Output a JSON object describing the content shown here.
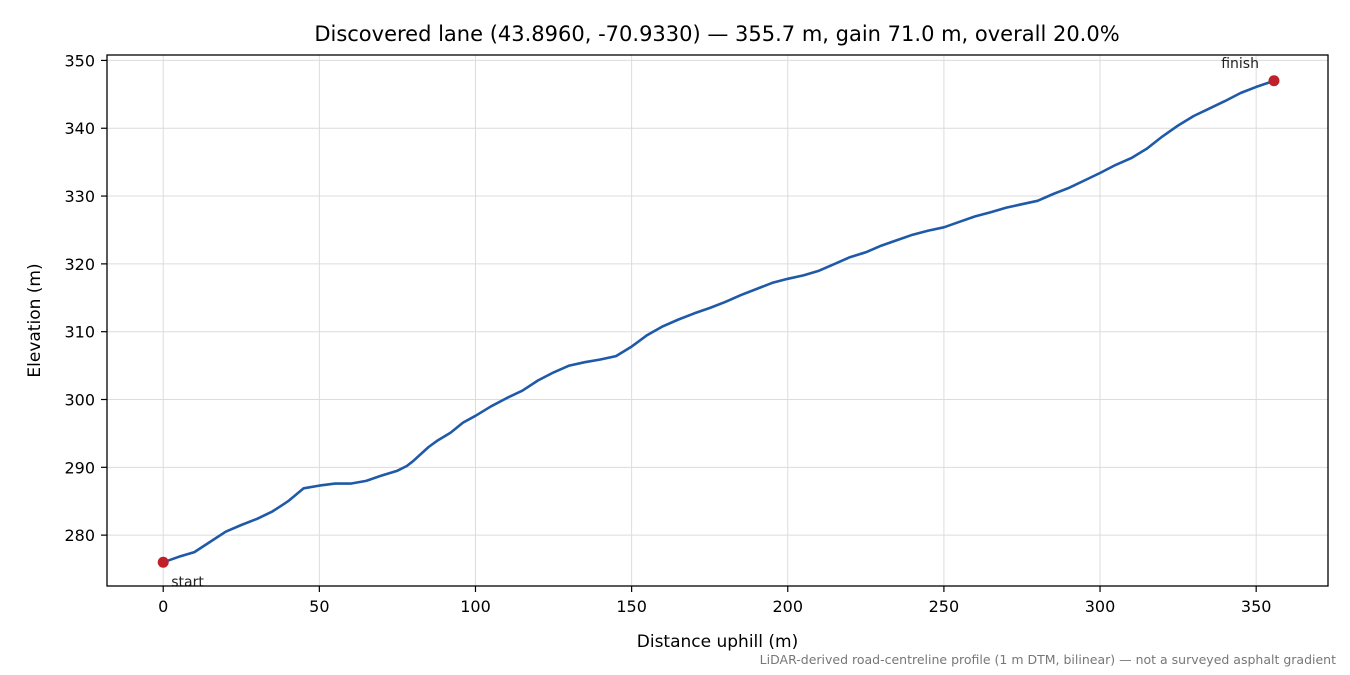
{
  "chart_data": {
    "type": "line",
    "title": "Discovered lane (43.8960, -70.9330) — 355.7 m, gain 71.0 m, overall 20.0%",
    "xlabel": "Distance uphill (m)",
    "ylabel": "Elevation (m)",
    "xlim": [
      -18,
      373
    ],
    "ylim": [
      272.5,
      350.8
    ],
    "xticks": [
      0,
      50,
      100,
      150,
      200,
      250,
      300,
      350
    ],
    "yticks": [
      280,
      290,
      300,
      310,
      320,
      330,
      340,
      350
    ],
    "grid": true,
    "line_color": "#1f5aa8",
    "marker_color": "#c0202a",
    "series": [
      {
        "x": [
          0,
          5,
          10,
          12,
          15,
          20,
          25,
          30,
          35,
          38,
          40,
          45,
          50,
          55,
          60,
          65,
          70,
          75,
          78,
          80,
          85,
          88,
          92,
          96,
          100,
          105,
          110,
          115,
          120,
          125,
          130,
          135,
          140,
          145,
          150,
          155,
          160,
          165,
          170,
          175,
          180,
          185,
          190,
          195,
          200,
          205,
          210,
          215,
          220,
          225,
          230,
          235,
          240,
          245,
          250,
          255,
          260,
          265,
          270,
          275,
          280,
          285,
          290,
          295,
          300,
          305,
          310,
          315,
          320,
          325,
          330,
          335,
          340,
          345,
          350,
          355.7
        ],
        "y": [
          276.0,
          276.8,
          277.5,
          278.1,
          279.0,
          280.5,
          281.5,
          282.4,
          283.5,
          284.4,
          285.0,
          286.9,
          287.3,
          287.6,
          287.6,
          288.0,
          288.8,
          289.5,
          290.2,
          290.9,
          293.0,
          294.0,
          295.1,
          296.6,
          297.6,
          299.0,
          300.2,
          301.3,
          302.8,
          304.0,
          305.0,
          305.5,
          305.9,
          306.4,
          307.8,
          309.5,
          310.8,
          311.8,
          312.7,
          313.5,
          314.4,
          315.4,
          316.3,
          317.2,
          317.8,
          318.3,
          319.0,
          320.0,
          321.0,
          321.7,
          322.7,
          323.5,
          324.3,
          324.9,
          325.4,
          326.2,
          327.0,
          327.6,
          328.3,
          328.8,
          329.3,
          330.3,
          331.2,
          332.3,
          333.4,
          334.6,
          335.6,
          337.0,
          338.8,
          340.4,
          341.8,
          342.9,
          344.0,
          345.2,
          346.1,
          347.0
        ]
      }
    ],
    "annotations": [
      {
        "label": "start",
        "x": 0,
        "y": 276.0
      },
      {
        "label": "finish",
        "x": 355.7,
        "y": 347.0
      }
    ],
    "footnote": "LiDAR-derived road-centreline profile (1 m DTM, bilinear) — not a surveyed asphalt gradient"
  }
}
